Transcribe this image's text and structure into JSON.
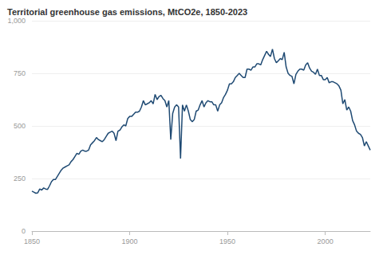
{
  "chart_data": {
    "type": "line",
    "title": "Territorial greenhouse gas emissions, MtCO2e, 1850-2023",
    "x": [
      1850,
      1851,
      1852,
      1853,
      1854,
      1855,
      1856,
      1857,
      1858,
      1859,
      1860,
      1861,
      1862,
      1863,
      1864,
      1865,
      1866,
      1867,
      1868,
      1869,
      1870,
      1871,
      1872,
      1873,
      1874,
      1875,
      1876,
      1877,
      1878,
      1879,
      1880,
      1881,
      1882,
      1883,
      1884,
      1885,
      1886,
      1887,
      1888,
      1889,
      1890,
      1891,
      1892,
      1893,
      1894,
      1895,
      1896,
      1897,
      1898,
      1899,
      1900,
      1901,
      1902,
      1903,
      1904,
      1905,
      1906,
      1907,
      1908,
      1909,
      1910,
      1911,
      1912,
      1913,
      1914,
      1915,
      1916,
      1917,
      1918,
      1919,
      1920,
      1921,
      1922,
      1923,
      1924,
      1925,
      1926,
      1927,
      1928,
      1929,
      1930,
      1931,
      1932,
      1933,
      1934,
      1935,
      1936,
      1937,
      1938,
      1939,
      1940,
      1941,
      1942,
      1943,
      1944,
      1945,
      1946,
      1947,
      1948,
      1949,
      1950,
      1951,
      1952,
      1953,
      1954,
      1955,
      1956,
      1957,
      1958,
      1959,
      1960,
      1961,
      1962,
      1963,
      1964,
      1965,
      1966,
      1967,
      1968,
      1969,
      1970,
      1971,
      1972,
      1973,
      1974,
      1975,
      1976,
      1977,
      1978,
      1979,
      1980,
      1981,
      1982,
      1983,
      1984,
      1985,
      1986,
      1987,
      1988,
      1989,
      1990,
      1991,
      1992,
      1993,
      1994,
      1995,
      1996,
      1997,
      1998,
      1999,
      2000,
      2001,
      2002,
      2003,
      2004,
      2005,
      2006,
      2007,
      2008,
      2009,
      2010,
      2011,
      2012,
      2013,
      2014,
      2015,
      2016,
      2017,
      2018,
      2019,
      2020,
      2021,
      2022,
      2023
    ],
    "values": [
      190,
      185,
      180,
      182,
      200,
      195,
      205,
      200,
      198,
      215,
      235,
      245,
      245,
      260,
      275,
      290,
      300,
      305,
      310,
      315,
      330,
      340,
      355,
      370,
      365,
      380,
      385,
      380,
      380,
      385,
      410,
      420,
      430,
      445,
      435,
      430,
      425,
      435,
      450,
      465,
      470,
      475,
      465,
      430,
      475,
      480,
      495,
      505,
      500,
      535,
      545,
      545,
      555,
      565,
      565,
      570,
      590,
      620,
      600,
      605,
      610,
      620,
      605,
      650,
      625,
      640,
      645,
      630,
      620,
      590,
      620,
      435,
      560,
      590,
      600,
      590,
      345,
      600,
      570,
      600,
      570,
      530,
      520,
      530,
      570,
      575,
      600,
      620,
      590,
      610,
      620,
      615,
      615,
      600,
      600,
      570,
      600,
      610,
      635,
      650,
      670,
      700,
      700,
      710,
      730,
      740,
      750,
      740,
      730,
      730,
      770,
      770,
      765,
      780,
      780,
      795,
      795,
      790,
      815,
      835,
      855,
      840,
      830,
      865,
      820,
      800,
      810,
      820,
      815,
      850,
      780,
      750,
      740,
      735,
      700,
      745,
      760,
      770,
      770,
      765,
      790,
      800,
      775,
      760,
      755,
      745,
      770,
      740,
      740,
      720,
      720,
      730,
      705,
      710,
      710,
      705,
      700,
      690,
      670,
      605,
      625,
      575,
      590,
      570,
      525,
      505,
      475,
      465,
      460,
      445,
      405,
      425,
      405,
      385
    ],
    "color": "#1f4a73",
    "xlim": [
      1850,
      2023
    ],
    "xticks": [
      1850,
      1900,
      1950,
      2000
    ],
    "ylim": [
      0,
      1000
    ],
    "yticks": [
      0,
      250,
      500,
      750,
      {
        "value": 1000,
        "label": "1,000"
      }
    ],
    "grid": true
  }
}
